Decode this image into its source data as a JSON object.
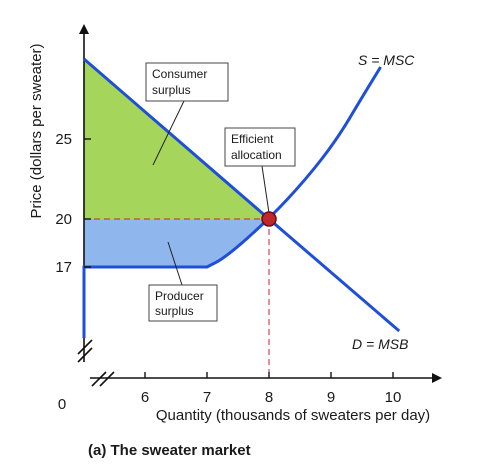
{
  "chart_data": {
    "type": "line",
    "caption": "(a) The sweater market",
    "xlabel": "Quantity (thousands of sweaters per day)",
    "ylabel": "Price (dollars per sweater)",
    "xlim": [
      5,
      10.5
    ],
    "ylim": [
      11,
      31
    ],
    "origin_label": "0",
    "x_ticks": [
      "6",
      "7",
      "8",
      "9",
      "10"
    ],
    "x_tick_values": [
      6,
      7,
      8,
      9,
      10
    ],
    "y_ticks": [
      "17",
      "20",
      "25"
    ],
    "y_tick_values": [
      17,
      20,
      25
    ],
    "highlighted_tick_color": "#c0272d",
    "series": [
      {
        "name": "D = MSB",
        "points": [
          [
            5,
            30
          ],
          [
            8,
            20
          ],
          [
            10.1,
            13
          ]
        ]
      },
      {
        "name": "S = MSC",
        "points": [
          [
            5,
            17
          ],
          [
            7,
            17
          ],
          [
            7.3,
            17.6
          ],
          [
            8,
            20
          ],
          [
            8.6,
            22.5
          ],
          [
            9.1,
            25
          ],
          [
            9.5,
            27.6
          ],
          [
            9.8,
            29.5
          ]
        ]
      }
    ],
    "equilibrium": {
      "quantity": 8,
      "price": 20,
      "color": "#c0272d"
    },
    "areas": [
      {
        "name": "Consumer surplus",
        "color": "#a6d55b"
      },
      {
        "name": "Producer surplus",
        "color": "#8fb7ee"
      }
    ],
    "annotations": [
      {
        "lines": [
          "Consumer",
          "surplus"
        ]
      },
      {
        "lines": [
          "Efficient",
          "allocation"
        ]
      },
      {
        "lines": [
          "Producer",
          "surplus"
        ]
      }
    ],
    "curve_color": "#1f4fd8"
  }
}
